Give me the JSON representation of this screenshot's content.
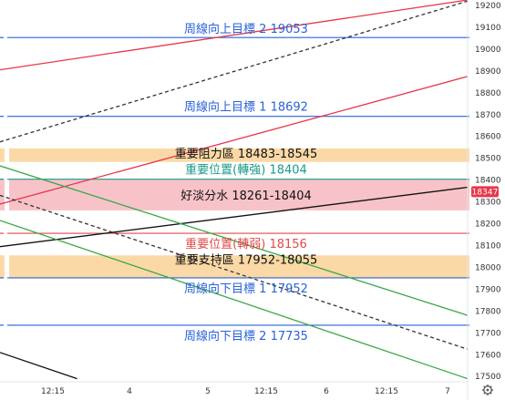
{
  "chart_data": {
    "type": "line",
    "y_axis": {
      "min": 17480,
      "max": 19225,
      "ticks": [
        19200,
        19100,
        19000,
        18900,
        18800,
        18700,
        18600,
        18500,
        18400,
        18300,
        18200,
        18100,
        18000,
        17900,
        17800,
        17700,
        17600,
        17500
      ],
      "position": "right"
    },
    "x_axis": {
      "ticks": [
        "12:15",
        "4",
        "5",
        "12:15",
        "6",
        "12:15",
        "7"
      ]
    },
    "current_price": {
      "value": 18347,
      "label": "18347",
      "color": "#e8374a"
    },
    "zones": [
      {
        "name": "resistance-zone",
        "from": 18483,
        "to": 18545,
        "color": "#fbd9a6"
      },
      {
        "name": "water-divide-zone",
        "from": 18261,
        "to": 18404,
        "color": "#f7c3c8"
      },
      {
        "name": "support-zone",
        "from": 17952,
        "to": 18055,
        "color": "#fbd9a6"
      }
    ],
    "horizontal_lines": [
      {
        "name": "weekly-up-target-2",
        "value": 19053,
        "color": "#2a62d6",
        "label": "周線向上目標 2 19053",
        "label_color": "#2a62d6"
      },
      {
        "name": "weekly-up-target-1",
        "value": 18692,
        "color": "#2a62d6",
        "label": "周線向上目標 1 18692",
        "label_color": "#2a62d6"
      },
      {
        "name": "resistance-label",
        "value": 18545,
        "color": "none",
        "label": "重要阻力區 18483-18545",
        "label_color": "#111111"
      },
      {
        "name": "key-level-strong",
        "value": 18404,
        "color": "#1a9a87",
        "label": "重要位置(轉強) 18404",
        "label_color": "#1a9a87"
      },
      {
        "name": "water-divide-label",
        "value": 18332,
        "color": "none",
        "label": "好淡分水 18261-18404",
        "label_color": "#111111"
      },
      {
        "name": "key-level-weak",
        "value": 18156,
        "color": "#e04a4a",
        "label": "重要位置(轉弱) 18156",
        "label_color": "#e04a4a"
      },
      {
        "name": "support-label",
        "value": 18055,
        "color": "none",
        "label": "重要支持區 17952-18055",
        "label_color": "#111111"
      },
      {
        "name": "weekly-down-target-1",
        "value": 17952,
        "color": "#2a62d6",
        "label": "周線向下目標 1 17952",
        "label_color": "#2a62d6"
      },
      {
        "name": "weekly-down-target-2",
        "value": 17735,
        "color": "#2a62d6",
        "label": "周線向下目標 2 17735",
        "label_color": "#2a62d6"
      }
    ],
    "trend_lines": [
      {
        "name": "red-channel-top",
        "color": "#e8374a",
        "dash": false,
        "points": [
          [
            0,
            18905
          ],
          [
            1,
            19225
          ]
        ]
      },
      {
        "name": "black-dashed-top",
        "color": "#333333",
        "dash": true,
        "points": [
          [
            0,
            18575
          ],
          [
            1,
            19220
          ]
        ]
      },
      {
        "name": "red-channel-bottom",
        "color": "#e8374a",
        "dash": false,
        "points": [
          [
            0,
            18290
          ],
          [
            1,
            18875
          ]
        ]
      },
      {
        "name": "black-mid",
        "color": "#111111",
        "dash": false,
        "points": [
          [
            0,
            18095
          ],
          [
            1,
            18367
          ]
        ]
      },
      {
        "name": "green-upper",
        "color": "#3aa84a",
        "dash": false,
        "points": [
          [
            0,
            18465
          ],
          [
            1,
            17780
          ]
        ]
      },
      {
        "name": "black-dashed-bottom",
        "color": "#333333",
        "dash": true,
        "points": [
          [
            0,
            18330
          ],
          [
            1,
            17625
          ]
        ]
      },
      {
        "name": "green-lower",
        "color": "#3aa84a",
        "dash": false,
        "points": [
          [
            0,
            18215
          ],
          [
            1,
            17490
          ]
        ]
      },
      {
        "name": "black-lower-stub",
        "color": "#111111",
        "dash": false,
        "points": [
          [
            0,
            17610
          ],
          [
            0.165,
            17490
          ]
        ]
      }
    ]
  },
  "ui": {
    "settings_icon": "gear-icon"
  }
}
